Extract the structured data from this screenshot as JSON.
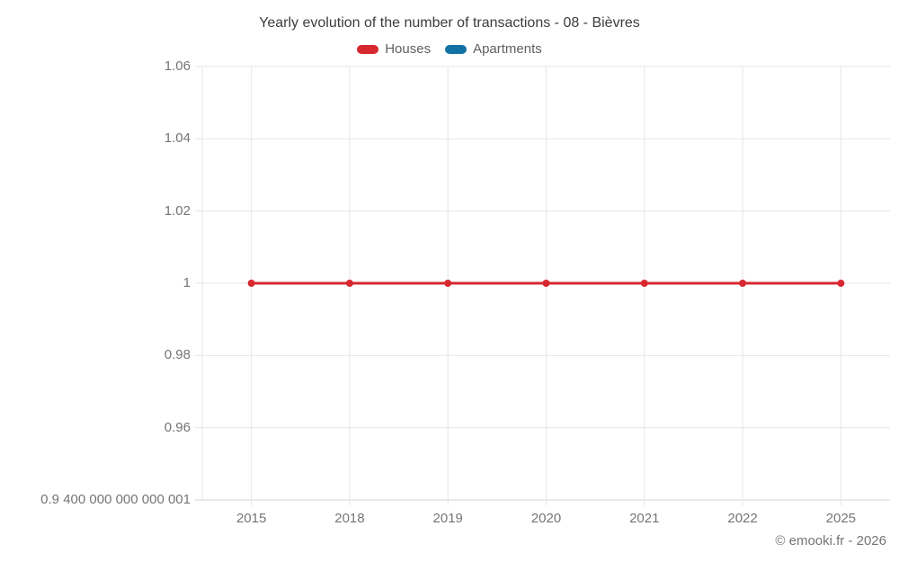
{
  "page": {
    "footer": "© emooki.fr - 2026"
  },
  "legend": {
    "items": [
      {
        "label": "Houses",
        "color": "#d7282f"
      },
      {
        "label": "Apartments",
        "color": "#1272a3"
      }
    ]
  },
  "chart_data": {
    "type": "line",
    "title": "Yearly evolution of the number of transactions - 08 - Bièvres",
    "categories": [
      "2015",
      "2018",
      "2019",
      "2020",
      "2021",
      "2022",
      "2025"
    ],
    "series": [
      {
        "name": "Houses",
        "color": "#d7282f",
        "marker": "circle",
        "values": [
          1,
          1,
          1,
          1,
          1,
          1,
          1
        ]
      },
      {
        "name": "Apartments",
        "color": "#1272a3",
        "marker": "circle",
        "values": [
          null,
          null,
          null,
          null,
          null,
          null,
          null
        ]
      }
    ],
    "y_axis": {
      "tick_labels": [
        "1.06",
        "1.04",
        "1.02",
        "1",
        "0.98",
        "0.96",
        "0.9 400 000 000 000 001"
      ],
      "tick_values": [
        1.06,
        1.04,
        1.02,
        1,
        0.98,
        0.96,
        0.9400000000000001
      ],
      "range": [
        0.9400000000000001,
        1.06
      ]
    },
    "x_axis": {
      "tick_labels": [
        "2015",
        "2018",
        "2019",
        "2020",
        "2021",
        "2022",
        "2025"
      ]
    },
    "grid": true,
    "legend_position": "top",
    "colors": {
      "grid": "#e6e6e6",
      "axis_line": "#d6d6d6",
      "tick_text": "#757575",
      "title_text": "#3c3c3c",
      "legend_text": "#5f5f5f",
      "background": "#ffffff"
    }
  }
}
